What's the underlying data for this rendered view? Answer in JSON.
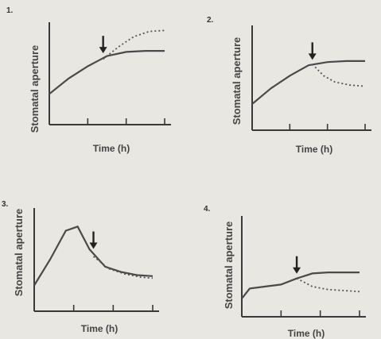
{
  "chart_data": [
    {
      "panel_label": "1.",
      "type": "line",
      "xlabel": "Time (h)",
      "ylabel": "Stomatal aperture",
      "xlim": [
        0,
        3
      ],
      "ylim": [
        0,
        1
      ],
      "arrow_x": 1.4,
      "series": [
        {
          "style": "solid",
          "x": [
            0,
            0.5,
            1,
            1.5,
            2,
            2.5,
            3
          ],
          "y": [
            0.3,
            0.45,
            0.57,
            0.67,
            0.71,
            0.72,
            0.72
          ]
        },
        {
          "style": "dotted",
          "x": [
            1.4,
            1.8,
            2.2,
            2.6,
            3
          ],
          "y": [
            0.64,
            0.76,
            0.86,
            0.91,
            0.92
          ]
        }
      ]
    },
    {
      "panel_label": "2.",
      "type": "line",
      "xlabel": "Time (h)",
      "ylabel": "Stomatal aperture",
      "xlim": [
        0,
        3
      ],
      "ylim": [
        0,
        1
      ],
      "arrow_x": 1.6,
      "series": [
        {
          "style": "solid",
          "x": [
            0,
            0.5,
            1,
            1.5,
            2,
            2.5,
            3
          ],
          "y": [
            0.25,
            0.4,
            0.52,
            0.62,
            0.65,
            0.66,
            0.66
          ]
        },
        {
          "style": "dotted",
          "x": [
            1.6,
            1.9,
            2.2,
            2.6,
            3
          ],
          "y": [
            0.63,
            0.52,
            0.46,
            0.43,
            0.42
          ]
        }
      ]
    },
    {
      "panel_label": "3.",
      "type": "line",
      "xlabel": "Time (h)",
      "ylabel": "Stomatal aperture",
      "xlim": [
        0,
        3
      ],
      "ylim": [
        0,
        1
      ],
      "arrow_x": 1.5,
      "series": [
        {
          "style": "solid",
          "x": [
            0,
            0.4,
            0.8,
            1.1,
            1.4,
            1.8,
            2.2,
            2.6,
            3
          ],
          "y": [
            0.25,
            0.5,
            0.78,
            0.82,
            0.6,
            0.43,
            0.38,
            0.35,
            0.34
          ]
        },
        {
          "style": "dotted",
          "x": [
            1.5,
            1.9,
            2.3,
            2.7,
            3
          ],
          "y": [
            0.53,
            0.41,
            0.36,
            0.33,
            0.32
          ]
        }
      ]
    },
    {
      "panel_label": "4.",
      "type": "line",
      "xlabel": "Time (h)",
      "ylabel": "Stomatal aperture",
      "xlim": [
        0,
        3
      ],
      "ylim": [
        0,
        1
      ],
      "arrow_x": 1.4,
      "series": [
        {
          "style": "solid",
          "x": [
            0,
            0.2,
            0.6,
            1,
            1.4,
            1.8,
            2.2,
            2.6,
            3
          ],
          "y": [
            0.18,
            0.28,
            0.3,
            0.32,
            0.38,
            0.43,
            0.44,
            0.44,
            0.44
          ]
        },
        {
          "style": "dotted",
          "x": [
            1.4,
            1.8,
            2.2,
            2.6,
            3
          ],
          "y": [
            0.38,
            0.3,
            0.27,
            0.26,
            0.25
          ]
        }
      ]
    }
  ]
}
